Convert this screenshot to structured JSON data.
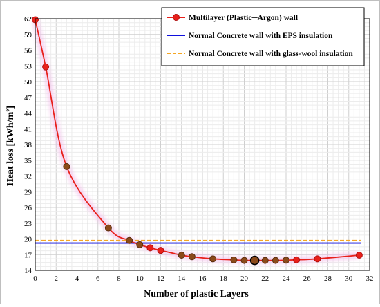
{
  "chart_data": {
    "type": "line",
    "xlabel": "Number of plastic Layers",
    "ylabel": "Heat loss  [kWh/m²]",
    "xlim": [
      0,
      32
    ],
    "ylim": [
      14,
      62
    ],
    "x_ticks": [
      "0",
      "2",
      "4",
      "6",
      "8",
      "10",
      "12",
      "14",
      "16",
      "18",
      "20",
      "22",
      "24",
      "26",
      "28",
      "30",
      "32"
    ],
    "y_ticks": [
      "14",
      "17",
      "20",
      "23",
      "26",
      "29",
      "32",
      "35",
      "38",
      "41",
      "44",
      "47",
      "50",
      "53",
      "56",
      "59",
      "62"
    ],
    "grid": true,
    "legend_position": "top-right",
    "series": [
      {
        "name": "Multilayer (Plastic─Argon) wall",
        "color": "#e8201a",
        "x": [
          0,
          1,
          3,
          7,
          9,
          10,
          11,
          12,
          14,
          15,
          17,
          19,
          20,
          21,
          22,
          23,
          24,
          25,
          27,
          31
        ],
        "y": [
          61.8,
          52.8,
          33.8,
          22.1,
          19.7,
          18.9,
          18.3,
          17.8,
          16.9,
          16.6,
          16.2,
          16.0,
          15.9,
          15.9,
          15.9,
          15.9,
          15.95,
          16.0,
          16.2,
          16.9
        ]
      },
      {
        "name": "Normal Concrete wall with EPS insulation",
        "color": "#1010dd",
        "y": 19.2
      },
      {
        "name": "Normal Concrete wall with glass-wool insulation",
        "color": "#f5a623",
        "y": 19.7
      }
    ]
  }
}
